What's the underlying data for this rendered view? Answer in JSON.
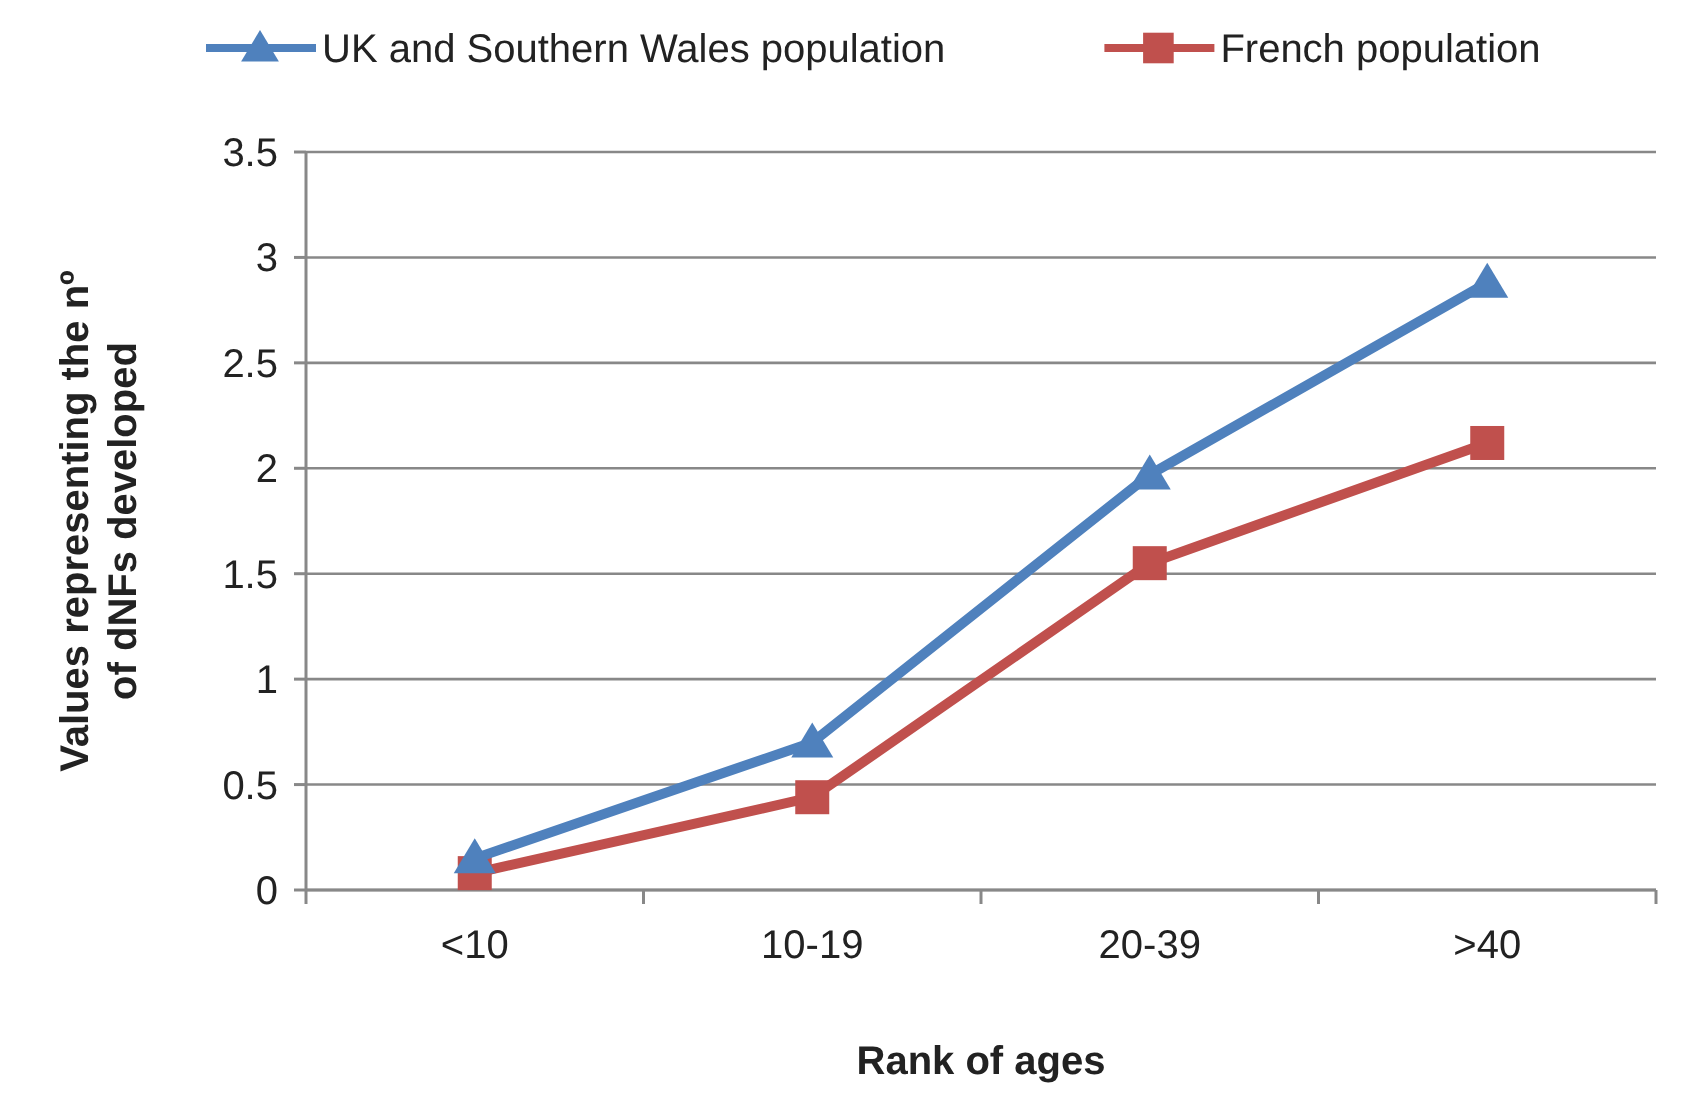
{
  "chart_data": {
    "type": "line",
    "xlabel": "Rank of ages",
    "ylabel": "Values representing the nº of dNFs developed",
    "categories": [
      "<10",
      "10-19",
      "20-39",
      ">40"
    ],
    "series": [
      {
        "name": "UK and Southern Wales population",
        "color": "#4f81bd",
        "marker": "triangle",
        "values": [
          0.15,
          0.7,
          1.97,
          2.88
        ]
      },
      {
        "name": "French population",
        "color": "#c0504d",
        "marker": "square",
        "values": [
          0.08,
          0.44,
          1.55,
          2.12
        ]
      }
    ],
    "ylim": [
      0,
      3.5
    ],
    "yticks": [
      0,
      0.5,
      1,
      1.5,
      2,
      2.5,
      3,
      3.5
    ],
    "grid": "y",
    "legend": "top"
  }
}
